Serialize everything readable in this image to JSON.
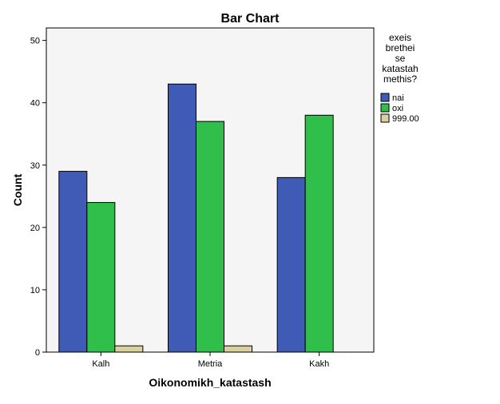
{
  "chart_data": {
    "type": "bar",
    "title": "Bar Chart",
    "xlabel": "Oikonomikh_katastash",
    "ylabel": "Count",
    "categories": [
      "Kalh",
      "Metria",
      "Kakh"
    ],
    "series": [
      {
        "name": "nai",
        "values": [
          29,
          43,
          28
        ],
        "color": "#3f5bb5"
      },
      {
        "name": "oxi",
        "values": [
          24,
          37,
          38
        ],
        "color": "#2fbf4a"
      },
      {
        "name": "999.00",
        "values": [
          1,
          1,
          0
        ],
        "color": "#d9d1a0"
      }
    ],
    "ylim": [
      0,
      52
    ],
    "yticks": [
      0,
      10,
      20,
      30,
      40,
      50
    ],
    "legend": {
      "title_lines": [
        "exeis",
        "brethei",
        "se",
        "katastah",
        "methis?"
      ],
      "placement": "right"
    },
    "plot_background": "#f5f5f5",
    "grid": false
  }
}
